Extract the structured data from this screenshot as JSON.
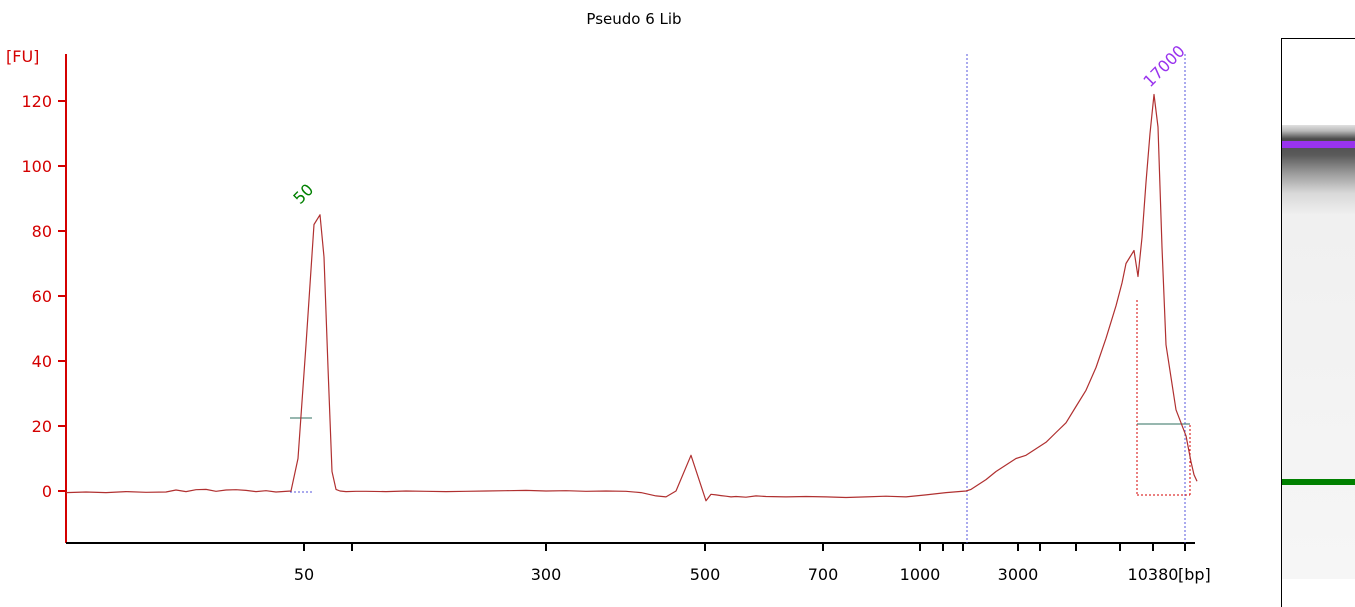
{
  "chart_data": {
    "type": "line",
    "title": "Pseudo 6 Lib",
    "ylabel": "[FU]",
    "xlabel": "[bp]",
    "ylim": [
      -15,
      130
    ],
    "yticks": [
      0,
      20,
      40,
      60,
      80,
      100,
      120
    ],
    "xtick_labels": [
      "50",
      "300",
      "500",
      "700",
      "1000",
      "3000",
      "10380"
    ],
    "colors": {
      "axis": "#d40000",
      "trace": "#b03030",
      "marker_line": "#5555dd",
      "lower_marker": "#008000",
      "upper_marker": "#9933ee",
      "baseline": "#2f6f5f"
    },
    "peaks": [
      {
        "label": "50",
        "size_bp": 50,
        "height_fu": 85,
        "color": "#008000"
      },
      {
        "label": "17000",
        "size_bp": 17000,
        "height_fu": 122,
        "color": "#9933ee"
      }
    ],
    "series": [
      {
        "x": [
          0,
          20,
          40,
          60,
          80,
          100,
          110,
          120,
          130,
          140,
          150,
          160,
          170,
          180,
          190,
          200,
          210,
          225,
          232,
          240,
          248,
          254,
          258,
          262,
          266,
          270,
          274,
          280,
          290,
          300,
          320,
          340,
          360,
          380,
          400,
          420,
          440,
          460,
          480,
          500,
          520,
          540,
          560,
          575,
          590,
          600,
          610,
          625,
          640,
          645,
          650,
          655,
          660,
          665,
          670,
          680,
          690,
          700,
          720,
          740,
          760,
          780,
          800,
          820,
          840,
          860,
          880,
          900,
          905,
          910,
          920,
          930,
          940,
          950,
          960,
          970,
          980,
          990,
          1000,
          1010,
          1020,
          1030,
          1040,
          1050,
          1056,
          1060,
          1064,
          1068,
          1072,
          1076,
          1080,
          1084,
          1088,
          1092,
          1096,
          1100,
          1110,
          1120,
          1125,
          1128,
          1131
        ],
        "y": [
          -0.5,
          -0.3,
          -0.5,
          -0.2,
          -0.4,
          -0.3,
          0.3,
          -0.2,
          0.4,
          0.5,
          -0.1,
          0.3,
          0.4,
          0.2,
          -0.2,
          0.1,
          -0.3,
          0,
          10,
          45,
          82,
          85,
          72,
          38,
          6,
          0.5,
          0,
          -0.2,
          -0.1,
          -0.1,
          -0.2,
          0,
          -0.1,
          -0.2,
          -0.1,
          0,
          0.1,
          0.2,
          0,
          0.1,
          -0.1,
          0,
          -0.1,
          -0.5,
          -1.5,
          -1.8,
          0,
          11,
          -3,
          -1,
          -1.2,
          -1.4,
          -1.6,
          -1.8,
          -1.7,
          -1.9,
          -1.5,
          -1.7,
          -1.8,
          -1.7,
          -1.8,
          -2,
          -1.8,
          -1.6,
          -1.8,
          -1.2,
          -0.5,
          0,
          0.5,
          1.5,
          3.5,
          6,
          8,
          10,
          11,
          13,
          15,
          18,
          21,
          26,
          31,
          38,
          47,
          57,
          64,
          70,
          72,
          74,
          66,
          78,
          95,
          110,
          122,
          112,
          75,
          45,
          25,
          17,
          9,
          5,
          3
        ]
      }
    ]
  }
}
